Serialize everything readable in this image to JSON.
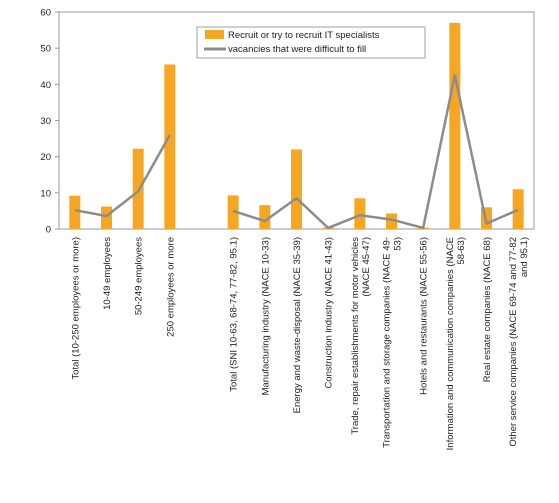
{
  "chart_data": {
    "type": "bar",
    "categories": [
      "Total (10-250 employees or more)",
      "10-49 employees",
      "50-249 employees",
      "250  employees or more",
      "",
      "Total (SNI 10-63, 68-74, 77-82, 95.1)",
      "Manufacturing industry (NACE 10-33)",
      "Energy and waste-disposal (NACE 35-39)",
      "Construction industry (NACE 41-43)",
      "Trade, repair establishments for motor vehicles (NACE 45-47)",
      "Transportation and storage companies (NACE 49-53)",
      "Hotels and restaurants (NACE 55-56)",
      "Information and communication companies (NACE 58-63)",
      "Real estate companies (NACE 68)",
      "Other service companies (NACE 69-74 and 77-82 and 95.1)"
    ],
    "category_lines": [
      [
        "Total (10-250 employees or more)"
      ],
      [
        "10-49 employees"
      ],
      [
        "50-249 employees"
      ],
      [
        "250  employees or more"
      ],
      [],
      [
        "Total (SNI 10-63, 68-74, 77-82, 95.1)"
      ],
      [
        "Manufacturing industry (NACE 10-33)"
      ],
      [
        "Energy and waste-disposal (NACE 35-39)"
      ],
      [
        "Construction industry (NACE 41-43)"
      ],
      [
        "Trade, repair establishments for motor vehicles",
        "(NACE 45-47)"
      ],
      [
        "Transportation and storage companies (NACE 49-",
        "53)"
      ],
      [
        "Hotels and restaurants (NACE 55-56)"
      ],
      [
        "Information and communication companies (NACE",
        "58-63)"
      ],
      [
        "Real estate companies (NACE 68)"
      ],
      [
        "Other service companies (NACE 69-74 and 77-82",
        "and 95.1)"
      ]
    ],
    "series": [
      {
        "name": "Recruit or try to recruit IT specialists",
        "kind": "bar",
        "color": "#f5a623",
        "values": [
          9.2,
          6.2,
          22.2,
          45.5,
          null,
          9.3,
          6.6,
          22.0,
          0.4,
          8.5,
          4.3,
          0.4,
          57.0,
          6.0,
          11.0
        ]
      },
      {
        "name": "vacancies that were difficult to fill",
        "kind": "line",
        "color": "#8c8c8c",
        "values": [
          5.2,
          3.6,
          10.4,
          26.0,
          null,
          5.0,
          2.2,
          8.5,
          0.3,
          3.8,
          2.6,
          0.3,
          42.5,
          1.5,
          5.3
        ]
      }
    ],
    "ylim": [
      0,
      60
    ],
    "yticks": [
      0,
      10,
      20,
      30,
      40,
      50,
      60
    ],
    "title": "",
    "xlabel": "",
    "ylabel": "",
    "grid": false,
    "legend_position": "top-center"
  }
}
